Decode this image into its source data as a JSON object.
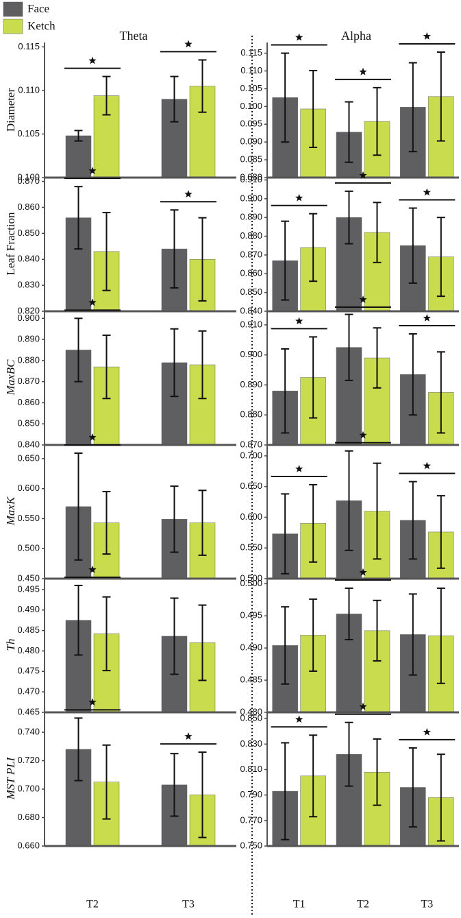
{
  "chart_data": [
    {
      "type": "bar",
      "title": "Theta",
      "y_label": "Diameter",
      "y_label_italic": false,
      "series": [
        {
          "name": "Face",
          "color": "#5f5f61",
          "values": [
            0.1048,
            0.109
          ],
          "errors": [
            0.0006,
            0.0026
          ]
        },
        {
          "name": "Ketch",
          "color": "#c8dc4e",
          "values": [
            0.1094,
            0.1105
          ],
          "errors": [
            0.0022,
            0.003
          ]
        }
      ],
      "significant": [
        true,
        true
      ],
      "ylim": [
        0.1,
        0.1155
      ],
      "yticks": [
        {
          "value": 0.1,
          "label": "0.100"
        },
        {
          "value": 0.105,
          "label": "0.105"
        },
        {
          "value": 0.11,
          "label": "0.110"
        },
        {
          "value": 0.115,
          "label": "0.115"
        }
      ]
    },
    {
      "type": "bar",
      "title": "Alpha",
      "series": [
        {
          "color": "#5f5f61",
          "values": [
            0.1025,
            0.0928,
            0.0998
          ],
          "errors": [
            0.0125,
            0.0085,
            0.0125
          ]
        },
        {
          "color": "#c8dc4e",
          "values": [
            0.0993,
            0.0958,
            0.1028
          ],
          "errors": [
            0.0108,
            0.0095,
            0.0125
          ]
        }
      ],
      "significant": [
        true,
        true,
        true
      ],
      "ylim": [
        0.08,
        0.118
      ],
      "yticks": [
        {
          "value": 0.08,
          "label": "0.080"
        },
        {
          "value": 0.085,
          "label": "0.085"
        },
        {
          "value": 0.09,
          "label": "0.090"
        },
        {
          "value": 0.095,
          "label": "0.095"
        },
        {
          "value": 0.1,
          "label": "0.100"
        },
        {
          "value": 0.105,
          "label": "0.105"
        },
        {
          "value": 0.11,
          "label": "0.110"
        },
        {
          "value": 0.115,
          "label": "0.115"
        }
      ]
    },
    {
      "type": "bar",
      "y_label": "Leaf Fraction",
      "y_label_italic": false,
      "series": [
        {
          "color": "#5f5f61",
          "values": [
            0.856,
            0.844
          ],
          "errors": [
            0.012,
            0.015
          ]
        },
        {
          "color": "#c8dc4e",
          "values": [
            0.843,
            0.84
          ],
          "errors": [
            0.015,
            0.016
          ]
        }
      ],
      "significant": [
        true,
        true
      ],
      "ylim": [
        0.82,
        0.872
      ],
      "yticks": [
        {
          "value": 0.82,
          "label": "0.820"
        },
        {
          "value": 0.83,
          "label": "0.830"
        },
        {
          "value": 0.84,
          "label": "0.840"
        },
        {
          "value": 0.85,
          "label": "0.850"
        },
        {
          "value": 0.86,
          "label": "0.860"
        },
        {
          "value": 0.87,
          "label": "0.870"
        }
      ]
    },
    {
      "type": "bar",
      "series": [
        {
          "color": "#5f5f61",
          "values": [
            0.867,
            0.89,
            0.875
          ],
          "errors": [
            0.021,
            0.014,
            0.02
          ]
        },
        {
          "color": "#c8dc4e",
          "values": [
            0.874,
            0.882,
            0.869
          ],
          "errors": [
            0.018,
            0.016,
            0.021
          ]
        }
      ],
      "significant": [
        true,
        true,
        true
      ],
      "ylim": [
        0.84,
        0.912
      ],
      "yticks": [
        {
          "value": 0.84,
          "label": "0.840"
        },
        {
          "value": 0.85,
          "label": "0.850"
        },
        {
          "value": 0.86,
          "label": "0.860"
        },
        {
          "value": 0.87,
          "label": "0.870"
        },
        {
          "value": 0.88,
          "label": "0.880"
        },
        {
          "value": 0.89,
          "label": "0.890"
        },
        {
          "value": 0.9,
          "label": "0.900"
        },
        {
          "value": 0.91,
          "label": "0.910"
        }
      ]
    },
    {
      "type": "bar",
      "y_label": "MaxBC",
      "y_label_italic": true,
      "series": [
        {
          "color": "#5f5f61",
          "values": [
            0.885,
            0.879
          ],
          "errors": [
            0.015,
            0.016
          ]
        },
        {
          "color": "#c8dc4e",
          "values": [
            0.877,
            0.878
          ],
          "errors": [
            0.015,
            0.016
          ]
        }
      ],
      "significant": [
        true,
        false
      ],
      "ylim": [
        0.84,
        0.904
      ],
      "yticks": [
        {
          "value": 0.84,
          "label": "0.840"
        },
        {
          "value": 0.85,
          "label": "0.850"
        },
        {
          "value": 0.86,
          "label": "0.860"
        },
        {
          "value": 0.87,
          "label": "0.870"
        },
        {
          "value": 0.88,
          "label": "0.880"
        },
        {
          "value": 0.89,
          "label": "0.890"
        },
        {
          "value": 0.9,
          "label": "0.900"
        }
      ]
    },
    {
      "type": "bar",
      "series": [
        {
          "color": "#5f5f61",
          "values": [
            0.888,
            0.9025,
            0.8935
          ],
          "errors": [
            0.014,
            0.011,
            0.0135
          ]
        },
        {
          "color": "#c8dc4e",
          "values": [
            0.8925,
            0.899,
            0.8875
          ],
          "errors": [
            0.0135,
            0.01,
            0.0135
          ]
        }
      ],
      "significant": [
        true,
        true,
        true
      ],
      "ylim": [
        0.87,
        0.915
      ],
      "yticks": [
        {
          "value": 0.87,
          "label": "0.870"
        },
        {
          "value": 0.88,
          "label": "0.880"
        },
        {
          "value": 0.89,
          "label": "0.890"
        },
        {
          "value": 0.9,
          "label": "0.900"
        },
        {
          "value": 0.91,
          "label": "0.910"
        }
      ]
    },
    {
      "type": "bar",
      "y_label": "MaxK",
      "y_label_italic": true,
      "series": [
        {
          "color": "#5f5f61",
          "values": [
            0.57,
            0.549
          ],
          "errors": [
            0.089,
            0.055
          ]
        },
        {
          "color": "#c8dc4e",
          "values": [
            0.543,
            0.543
          ],
          "errors": [
            0.052,
            0.054
          ]
        }
      ],
      "significant": [
        true,
        false
      ],
      "ylim": [
        0.45,
        0.675
      ],
      "yticks": [
        {
          "value": 0.45,
          "label": "0.450"
        },
        {
          "value": 0.5,
          "label": "0.500"
        },
        {
          "value": 0.55,
          "label": "0.550"
        },
        {
          "value": 0.6,
          "label": "0.600"
        },
        {
          "value": 0.65,
          "label": "0.650"
        }
      ]
    },
    {
      "type": "bar",
      "series": [
        {
          "color": "#5f5f61",
          "values": [
            0.573,
            0.627,
            0.595
          ],
          "errors": [
            0.065,
            0.081,
            0.063
          ]
        },
        {
          "color": "#c8dc4e",
          "values": [
            0.59,
            0.61,
            0.576
          ],
          "errors": [
            0.063,
            0.078,
            0.059
          ]
        }
      ],
      "significant": [
        true,
        true,
        true
      ],
      "ylim": [
        0.5,
        0.72
      ],
      "yticks": [
        {
          "value": 0.5,
          "label": "0.500"
        },
        {
          "value": 0.55,
          "label": "0.550"
        },
        {
          "value": 0.6,
          "label": "0.600"
        },
        {
          "value": 0.65,
          "label": "0.650"
        },
        {
          "value": 0.7,
          "label": "0.700"
        }
      ]
    },
    {
      "type": "bar",
      "y_label": "Th",
      "y_label_italic": true,
      "series": [
        {
          "color": "#5f5f61",
          "values": [
            0.4875,
            0.4836
          ],
          "errors": [
            0.0085,
            0.0093
          ]
        },
        {
          "color": "#c8dc4e",
          "values": [
            0.4842,
            0.482
          ],
          "errors": [
            0.009,
            0.0092
          ]
        }
      ],
      "significant": [
        true,
        false
      ],
      "ylim": [
        0.465,
        0.498
      ],
      "yticks": [
        {
          "value": 0.465,
          "label": "0.465"
        },
        {
          "value": 0.47,
          "label": "0.470"
        },
        {
          "value": 0.475,
          "label": "0.475"
        },
        {
          "value": 0.48,
          "label": "0.480"
        },
        {
          "value": 0.485,
          "label": "0.485"
        },
        {
          "value": 0.49,
          "label": "0.490"
        },
        {
          "value": 0.495,
          "label": "0.495"
        }
      ]
    },
    {
      "type": "bar",
      "series": [
        {
          "color": "#5f5f61",
          "values": [
            0.4904,
            0.4953,
            0.4921
          ],
          "errors": [
            0.006,
            0.004,
            0.0063
          ]
        },
        {
          "color": "#c8dc4e",
          "values": [
            0.492,
            0.4927,
            0.4919
          ],
          "errors": [
            0.0056,
            0.0047,
            0.0074
          ]
        }
      ],
      "significant": [
        false,
        true,
        false
      ],
      "ylim": [
        0.48,
        0.501
      ],
      "yticks": [
        {
          "value": 0.48,
          "label": "0.480"
        },
        {
          "value": 0.485,
          "label": "0.485"
        },
        {
          "value": 0.49,
          "label": "0.490"
        },
        {
          "value": 0.495,
          "label": "0.495"
        },
        {
          "value": 0.5,
          "label": "0.500"
        }
      ]
    },
    {
      "type": "bar",
      "y_label": "MST PLI",
      "y_label_italic": true,
      "categories": [
        "T2",
        "T3"
      ],
      "series": [
        {
          "color": "#5f5f61",
          "values": [
            0.728,
            0.703
          ],
          "errors": [
            0.022,
            0.022
          ]
        },
        {
          "color": "#c8dc4e",
          "values": [
            0.705,
            0.696
          ],
          "errors": [
            0.026,
            0.03
          ]
        }
      ],
      "significant": [
        true,
        true
      ],
      "ylim": [
        0.66,
        0.755
      ],
      "yticks": [
        {
          "value": 0.66,
          "label": "0.660"
        },
        {
          "value": 0.68,
          "label": "0.680"
        },
        {
          "value": 0.7,
          "label": "0.700"
        },
        {
          "value": 0.72,
          "label": "0.720"
        },
        {
          "value": 0.74,
          "label": "0.740"
        }
      ]
    },
    {
      "type": "bar",
      "categories": [
        "T1",
        "T2",
        "T3"
      ],
      "series": [
        {
          "color": "#5f5f61",
          "values": [
            0.793,
            0.822,
            0.796
          ],
          "errors": [
            0.038,
            0.025,
            0.031
          ]
        },
        {
          "color": "#c8dc4e",
          "values": [
            0.805,
            0.808,
            0.788
          ],
          "errors": [
            0.032,
            0.026,
            0.034
          ]
        }
      ],
      "significant": [
        true,
        true,
        true
      ],
      "ylim": [
        0.75,
        0.856
      ],
      "yticks": [
        {
          "value": 0.75,
          "label": "0.750"
        },
        {
          "value": 0.77,
          "label": "0.770"
        },
        {
          "value": 0.79,
          "label": "0.790"
        },
        {
          "value": 0.81,
          "label": "0.810"
        },
        {
          "value": 0.83,
          "label": "0.830"
        },
        {
          "value": 0.85,
          "label": "0.850"
        }
      ]
    }
  ]
}
